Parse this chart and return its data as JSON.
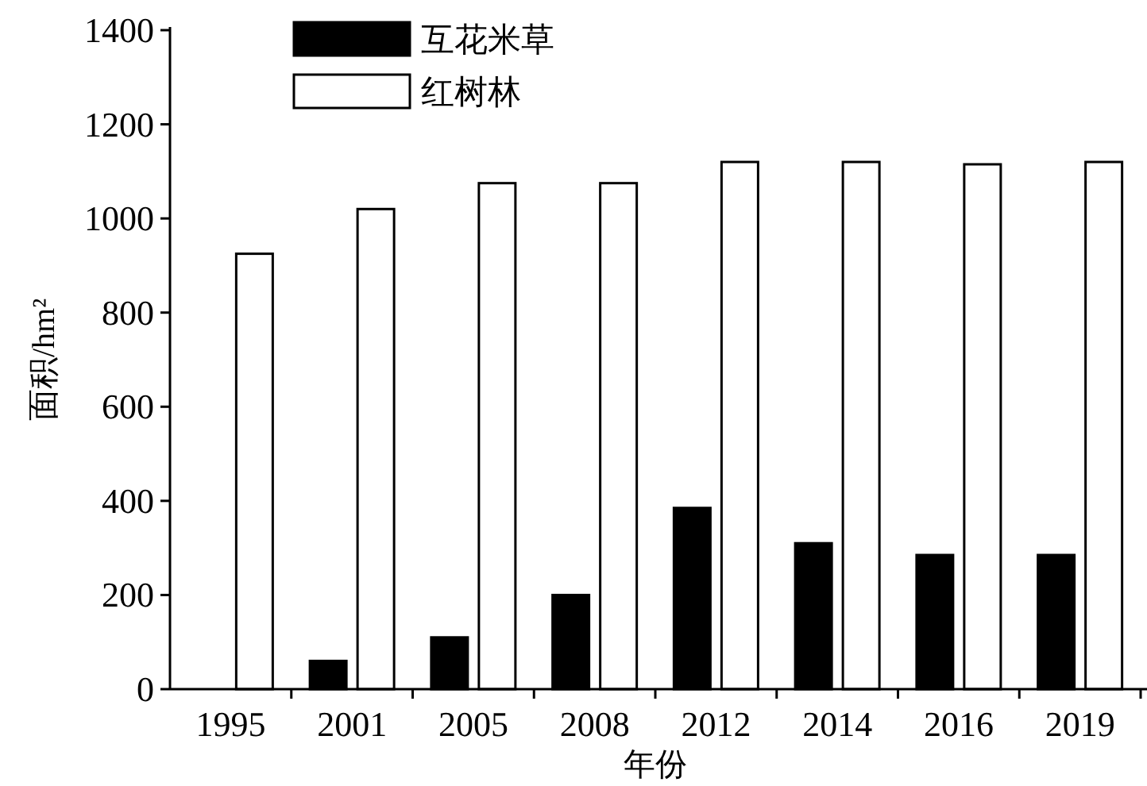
{
  "chart_data": {
    "type": "bar",
    "categories": [
      "1995",
      "2001",
      "2005",
      "2008",
      "2012",
      "2014",
      "2016",
      "2019"
    ],
    "series": [
      {
        "name": "互花米草",
        "color": "#000000",
        "values": [
          0,
          60,
          110,
          200,
          385,
          310,
          285,
          285
        ]
      },
      {
        "name": "红树林",
        "color": "#ffffff",
        "values": [
          925,
          1020,
          1075,
          1075,
          1120,
          1120,
          1115,
          1120
        ]
      }
    ],
    "ylim": [
      0,
      1400
    ],
    "yticks": [
      0,
      200,
      400,
      600,
      800,
      1000,
      1200,
      1400
    ],
    "xlabel": "年份",
    "ylabel": "面积/hm²",
    "legend": "top left"
  }
}
